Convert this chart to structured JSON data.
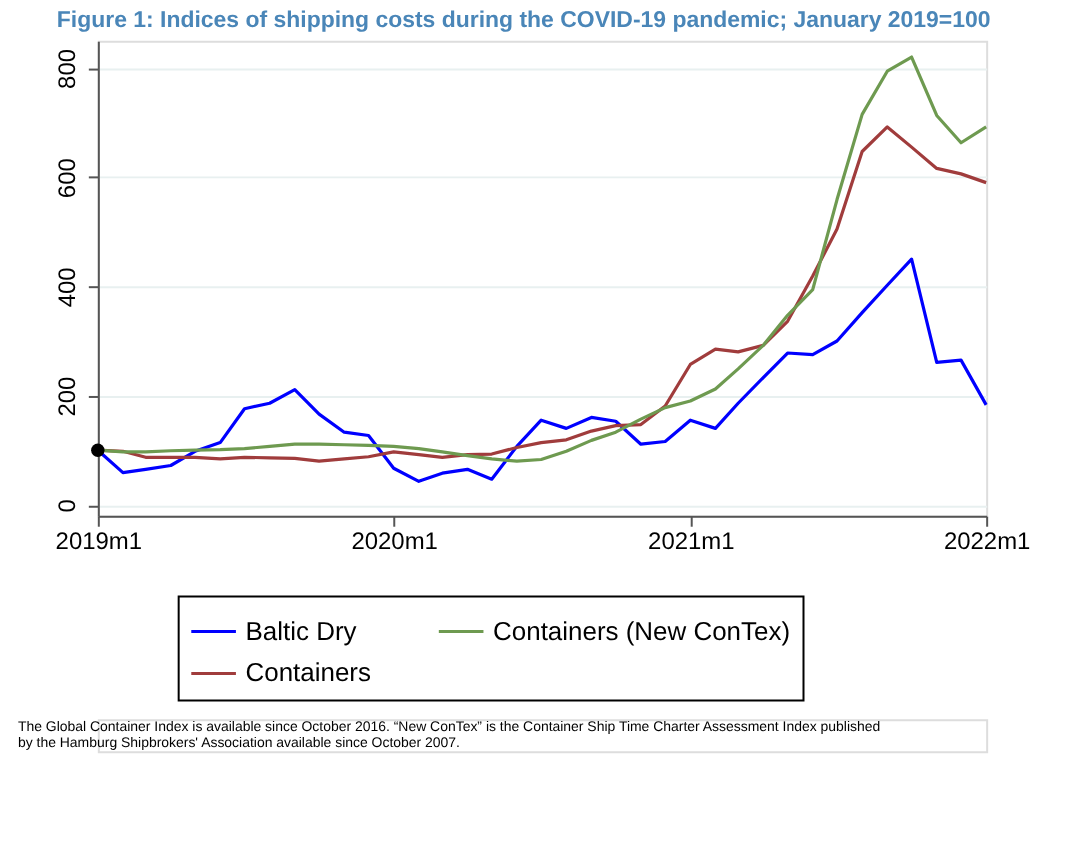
{
  "chart_data": {
    "type": "line",
    "title": "Figure 1: Indices of shipping costs during the COVID-19 pandemic; January 2019=100",
    "x": [
      "2019-01",
      "2019-02",
      "2019-03",
      "2019-04",
      "2019-05",
      "2019-06",
      "2019-07",
      "2019-08",
      "2019-09",
      "2019-10",
      "2019-11",
      "2019-12",
      "2020-01",
      "2020-02",
      "2020-03",
      "2020-04",
      "2020-05",
      "2020-06",
      "2020-07",
      "2020-08",
      "2020-09",
      "2020-10",
      "2020-11",
      "2020-12",
      "2021-01",
      "2021-02",
      "2021-03",
      "2021-04",
      "2021-05",
      "2021-06",
      "2021-07",
      "2021-08",
      "2021-09",
      "2021-10",
      "2021-11",
      "2021-12",
      "2022-01"
    ],
    "series": [
      {
        "name": "Baltic Dry",
        "color": "#0000ff",
        "values": [
          100,
          59,
          65,
          72,
          98,
          114,
          176,
          186,
          211,
          166,
          133,
          127,
          67,
          43,
          58,
          65,
          47,
          107,
          155,
          140,
          160,
          153,
          111,
          116,
          155,
          140,
          186,
          233,
          278,
          275,
          300,
          352,
          402,
          450,
          261,
          265,
          183
        ]
      },
      {
        "name": "Containers",
        "color": "#a03c3c",
        "values": [
          100,
          98,
          87,
          87,
          87,
          84,
          87,
          86,
          85,
          80,
          84,
          88,
          97,
          92,
          87,
          92,
          93,
          105,
          114,
          119,
          135,
          145,
          147,
          181,
          257,
          285,
          280,
          292,
          336,
          419,
          505,
          647,
          692,
          655,
          616,
          606,
          590
        ]
      },
      {
        "name": "Containers (New ConTex)",
        "color": "#6e9a50",
        "values": [
          100,
          97,
          97,
          99,
          100,
          101,
          103,
          107,
          111,
          111,
          110,
          109,
          107,
          103,
          97,
          90,
          84,
          80,
          83,
          98,
          118,
          133,
          157,
          178,
          190,
          212,
          249,
          292,
          347,
          394,
          559,
          715,
          794,
          820,
          713,
          663,
          692
        ]
      },
      {
        "type": "scatter",
        "marker": "circle",
        "color": "#000000",
        "x": [
          "2019-01"
        ],
        "values": [
          100
        ]
      }
    ],
    "xlim": [
      "2019-01",
      "2022-01"
    ],
    "xticks": [
      {
        "value": "2019-01",
        "label": "2019m1"
      },
      {
        "value": "2020-01",
        "label": "2020m1"
      },
      {
        "value": "2021-01",
        "label": "2021m1"
      },
      {
        "value": "2022-01",
        "label": "2022m1"
      }
    ],
    "ylim": [
      -20,
      850
    ],
    "yticks": [
      0,
      200,
      400,
      600,
      800
    ],
    "grid": "y",
    "legend": "bottom",
    "marker": "none",
    "line_style": "solid",
    "annotations": [
      "The Global Container Index is available since October 2016. “New ConTex” is the Container Ship Time Charter Assessment Index published by the Hamburg Shipbrokers' Association available since October 2007."
    ]
  }
}
